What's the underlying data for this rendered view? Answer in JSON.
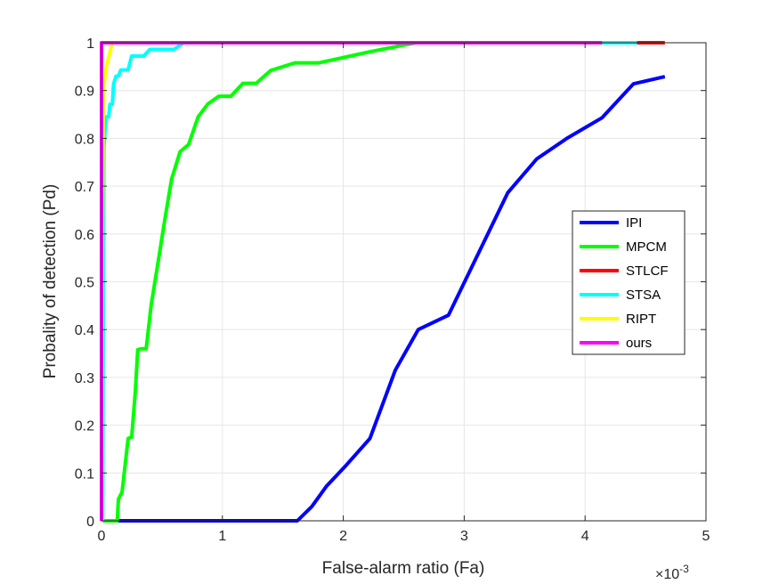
{
  "chart_data": {
    "type": "line",
    "xlabel": "False-alarm ratio (Fa)",
    "ylabel": "Probality of detection (Pd)",
    "x_exponent_label": "×10",
    "x_exponent_power": "-3",
    "xlim": [
      0,
      5
    ],
    "ylim": [
      0,
      1
    ],
    "x_ticks": [
      0,
      1,
      2,
      3,
      4,
      5
    ],
    "x_tick_labels": [
      "0",
      "1",
      "2",
      "3",
      "4",
      "5"
    ],
    "y_ticks": [
      0,
      0.1,
      0.2,
      0.3,
      0.4,
      0.5,
      0.6,
      0.7,
      0.8,
      0.9,
      1
    ],
    "y_tick_labels": [
      "0",
      "0.1",
      "0.2",
      "0.3",
      "0.4",
      "0.5",
      "0.6",
      "0.7",
      "0.8",
      "0.9",
      "1"
    ],
    "grid": true,
    "legend_position": "right-middle",
    "series": [
      {
        "name": "IPI",
        "color": "#0000ff",
        "points": [
          [
            0.03,
            0
          ],
          [
            1.62,
            0
          ],
          [
            1.74,
            0.03
          ],
          [
            1.86,
            0.072
          ],
          [
            2.02,
            0.115
          ],
          [
            2.22,
            0.172
          ],
          [
            2.43,
            0.315
          ],
          [
            2.62,
            0.4
          ],
          [
            2.87,
            0.43
          ],
          [
            3.36,
            0.686
          ],
          [
            3.6,
            0.757
          ],
          [
            3.85,
            0.8
          ],
          [
            4.14,
            0.843
          ],
          [
            4.4,
            0.914
          ],
          [
            4.66,
            0.929
          ]
        ]
      },
      {
        "name": "MPCM",
        "color": "#00ff00",
        "points": [
          [
            0.01,
            0
          ],
          [
            0.13,
            0
          ],
          [
            0.14,
            0.045
          ],
          [
            0.17,
            0.06
          ],
          [
            0.22,
            0.172
          ],
          [
            0.25,
            0.175
          ],
          [
            0.28,
            0.27
          ],
          [
            0.3,
            0.358
          ],
          [
            0.33,
            0.36
          ],
          [
            0.37,
            0.36
          ],
          [
            0.41,
            0.45
          ],
          [
            0.48,
            0.56
          ],
          [
            0.53,
            0.64
          ],
          [
            0.58,
            0.715
          ],
          [
            0.65,
            0.772
          ],
          [
            0.72,
            0.787
          ],
          [
            0.8,
            0.845
          ],
          [
            0.88,
            0.872
          ],
          [
            0.97,
            0.888
          ],
          [
            1.07,
            0.888
          ],
          [
            1.17,
            0.915
          ],
          [
            1.28,
            0.915
          ],
          [
            1.4,
            0.942
          ],
          [
            1.6,
            0.958
          ],
          [
            1.8,
            0.958
          ],
          [
            2.2,
            0.98
          ],
          [
            2.6,
            1
          ],
          [
            4.14,
            1
          ]
        ]
      },
      {
        "name": "STLCF",
        "color": "#ff0000",
        "points": [
          [
            0.005,
            1
          ],
          [
            4.66,
            1
          ]
        ]
      },
      {
        "name": "STSA",
        "color": "#00ffff",
        "points": [
          [
            0.01,
            0
          ],
          [
            0.015,
            0.4
          ],
          [
            0.02,
            0.78
          ],
          [
            0.03,
            0.82
          ],
          [
            0.04,
            0.845
          ],
          [
            0.06,
            0.845
          ],
          [
            0.07,
            0.871
          ],
          [
            0.09,
            0.871
          ],
          [
            0.1,
            0.914
          ],
          [
            0.12,
            0.93
          ],
          [
            0.14,
            0.93
          ],
          [
            0.16,
            0.943
          ],
          [
            0.22,
            0.943
          ],
          [
            0.25,
            0.972
          ],
          [
            0.35,
            0.972
          ],
          [
            0.4,
            0.986
          ],
          [
            0.6,
            0.986
          ],
          [
            0.68,
            1
          ],
          [
            4.43,
            1
          ]
        ]
      },
      {
        "name": "RIPT",
        "color": "#ffff00",
        "points": [
          [
            0.005,
            0
          ],
          [
            0.008,
            0.6
          ],
          [
            0.015,
            0.9
          ],
          [
            0.04,
            0.95
          ],
          [
            0.07,
            0.98
          ],
          [
            0.09,
            1
          ],
          [
            0.1,
            1
          ]
        ]
      },
      {
        "name": "ours",
        "color": "#ff00ff",
        "points": [
          [
            0,
            0
          ],
          [
            0,
            1
          ],
          [
            4.14,
            1
          ]
        ]
      }
    ]
  }
}
